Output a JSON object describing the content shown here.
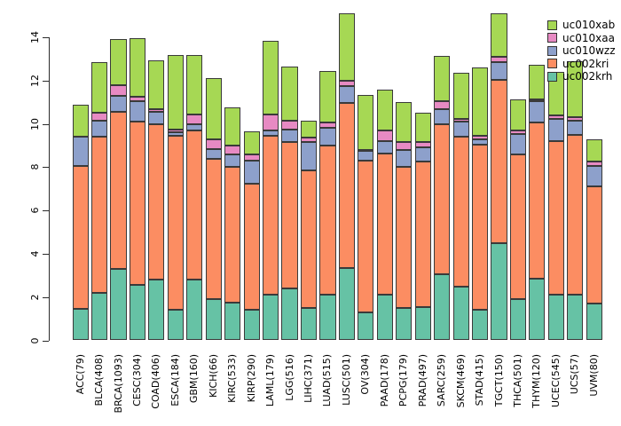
{
  "figure": {
    "background": "#ffffff",
    "bar_border_color": "#3a3a3a",
    "axis_color": "#2b2b2b"
  },
  "chart_data": {
    "type": "bar",
    "stacked": true,
    "orientation": "vertical",
    "title": "",
    "xlabel": "",
    "ylabel": "",
    "grid": false,
    "ylim": [
      0,
      15.2
    ],
    "yticks": [
      0,
      2,
      4,
      6,
      8,
      10,
      12,
      14
    ],
    "categories": [
      "ACC(79)",
      "BLCA(408)",
      "BRCA(1093)",
      "CESC(304)",
      "COAD(406)",
      "ESCA(184)",
      "GBM(160)",
      "KICH(66)",
      "KIRC(533)",
      "KIRP(290)",
      "LAML(179)",
      "LGG(516)",
      "LIHC(371)",
      "LUAD(515)",
      "LUSC(501)",
      "OV(304)",
      "PAAD(178)",
      "PCPG(179)",
      "PRAD(497)",
      "SARC(259)",
      "SKCM(469)",
      "STAD(415)",
      "TGCT(150)",
      "THCA(501)",
      "THYM(120)",
      "UCEC(545)",
      "UCS(57)",
      "UVM(80)"
    ],
    "series": [
      {
        "name": "uc002krh",
        "color": "#66C2A5",
        "values": [
          1.45,
          2.2,
          3.3,
          2.55,
          2.8,
          1.4,
          2.8,
          1.9,
          1.75,
          1.4,
          2.1,
          2.4,
          1.5,
          2.1,
          3.35,
          1.3,
          2.1,
          1.5,
          1.55,
          3.05,
          2.5,
          1.4,
          4.5,
          1.9,
          2.85,
          2.1,
          2.1,
          1.7
        ]
      },
      {
        "name": "uc002kri",
        "color": "#FC8D62",
        "values": [
          6.6,
          7.2,
          7.25,
          7.55,
          7.2,
          8.05,
          6.9,
          6.5,
          6.25,
          5.85,
          7.35,
          6.75,
          6.35,
          6.9,
          7.6,
          7.0,
          6.55,
          6.5,
          6.7,
          6.95,
          6.9,
          7.65,
          7.55,
          6.7,
          7.2,
          7.1,
          7.4,
          5.4
        ]
      },
      {
        "name": "uc010wzz",
        "color": "#8DA0CB",
        "values": [
          1.35,
          0.75,
          0.75,
          0.95,
          0.55,
          0.15,
          0.3,
          0.45,
          0.6,
          1.05,
          0.25,
          0.6,
          1.3,
          0.8,
          0.8,
          0.45,
          0.55,
          0.8,
          0.65,
          0.7,
          0.7,
          0.25,
          0.8,
          0.95,
          1.0,
          1.05,
          0.65,
          0.95
        ]
      },
      {
        "name": "uc010xaa",
        "color": "#E78AC3",
        "values": [
          0.0,
          0.35,
          0.5,
          0.2,
          0.15,
          0.15,
          0.45,
          0.45,
          0.4,
          0.3,
          0.75,
          0.4,
          0.2,
          0.25,
          0.25,
          0.05,
          0.5,
          0.35,
          0.25,
          0.35,
          0.15,
          0.15,
          0.25,
          0.15,
          0.1,
          0.15,
          0.15,
          0.2
        ]
      },
      {
        "name": "uc010xab",
        "color": "#A6D854",
        "values": [
          1.5,
          2.35,
          2.1,
          2.7,
          2.25,
          3.45,
          2.75,
          2.8,
          1.75,
          1.05,
          3.4,
          2.5,
          0.8,
          2.4,
          3.1,
          2.55,
          1.9,
          1.85,
          1.35,
          2.1,
          2.1,
          3.15,
          2.0,
          1.45,
          1.6,
          2.0,
          2.6,
          1.05
        ]
      }
    ],
    "legend": {
      "position": "top-right",
      "items_top_to_bottom": [
        "uc010xab",
        "uc010xaa",
        "uc010wzz",
        "uc002kri",
        "uc002krh"
      ]
    }
  }
}
